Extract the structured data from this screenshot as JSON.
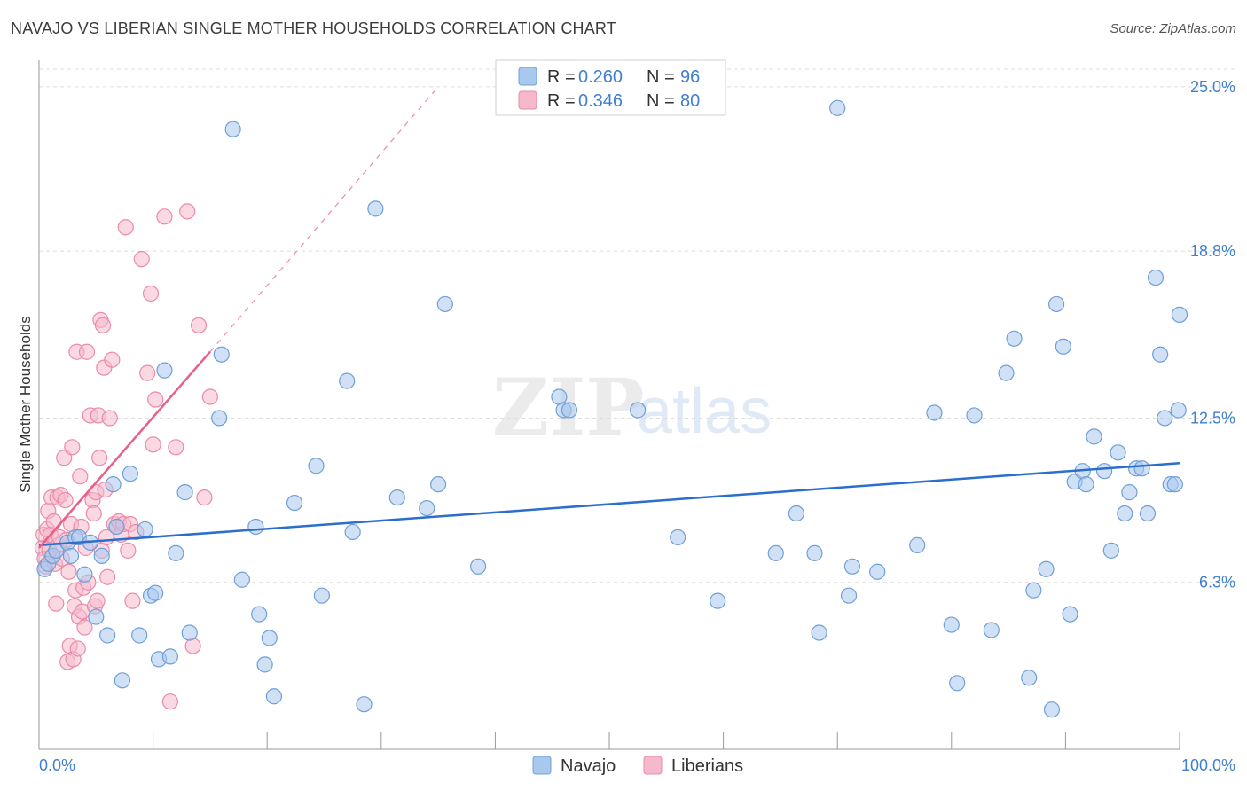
{
  "header": {
    "title": "NAVAJO VS LIBERIAN SINGLE MOTHER HOUSEHOLDS CORRELATION CHART",
    "source": "Source: ZipAtlas.com"
  },
  "watermark": {
    "zip": "ZIP",
    "atlas": "atlas"
  },
  "colors": {
    "navajo_fill": "#a9c8ee",
    "navajo_stroke": "#6f9fd8",
    "navajo_line": "#2a6fcc",
    "liberian_fill": "#f6b9cc",
    "liberian_stroke": "#ec8aa8",
    "liberian_line": "#e8608a",
    "label_blue": "#3f7fd0",
    "grid": "#dddddd"
  },
  "stats": [
    {
      "r_label": "R =",
      "r_value": "0.260",
      "n_label": "N =",
      "n_value": "96"
    },
    {
      "r_label": "R =",
      "r_value": "0.346",
      "n_label": "N =",
      "n_value": "80"
    }
  ],
  "chart_data": {
    "type": "scatter",
    "title": "NAVAJO VS LIBERIAN SINGLE MOTHER HOUSEHOLDS CORRELATION CHART",
    "xlabel": "",
    "ylabel": "Single Mother Households",
    "xlim": [
      0,
      100
    ],
    "ylim": [
      0,
      26
    ],
    "x_tick_labels": [
      "0.0%",
      "100.0%"
    ],
    "y_ticks": [
      6.3,
      12.5,
      18.8,
      25.0
    ],
    "y_tick_labels": [
      "6.3%",
      "12.5%",
      "18.8%",
      "25.0%"
    ],
    "grid": true,
    "legend_position": "bottom-center",
    "series": [
      {
        "name": "Navajo",
        "r": 0.26,
        "n": 96,
        "trend": {
          "x": [
            0,
            100
          ],
          "y": [
            7.7,
            10.8
          ],
          "style": "solid"
        },
        "points": [
          [
            0.5,
            6.8
          ],
          [
            0.8,
            7.0
          ],
          [
            1.2,
            7.3
          ],
          [
            1.5,
            7.5
          ],
          [
            2.5,
            7.8
          ],
          [
            2.8,
            7.3
          ],
          [
            3.2,
            8.0
          ],
          [
            3.5,
            8.0
          ],
          [
            4.0,
            6.6
          ],
          [
            4.5,
            7.8
          ],
          [
            5.0,
            5.0
          ],
          [
            5.5,
            7.3
          ],
          [
            6.0,
            4.3
          ],
          [
            6.5,
            10.0
          ],
          [
            6.8,
            8.4
          ],
          [
            7.3,
            2.6
          ],
          [
            8.0,
            10.4
          ],
          [
            8.8,
            4.3
          ],
          [
            9.3,
            8.3
          ],
          [
            9.8,
            5.8
          ],
          [
            10.2,
            5.9
          ],
          [
            10.5,
            3.4
          ],
          [
            11.0,
            14.3
          ],
          [
            11.5,
            3.5
          ],
          [
            12.0,
            7.4
          ],
          [
            12.8,
            9.7
          ],
          [
            13.2,
            4.4
          ],
          [
            15.8,
            12.5
          ],
          [
            16.0,
            14.9
          ],
          [
            17.0,
            23.4
          ],
          [
            17.8,
            6.4
          ],
          [
            19.0,
            8.4
          ],
          [
            19.3,
            5.1
          ],
          [
            19.8,
            3.2
          ],
          [
            20.2,
            4.2
          ],
          [
            20.6,
            2.0
          ],
          [
            22.4,
            9.3
          ],
          [
            24.3,
            10.7
          ],
          [
            24.8,
            5.8
          ],
          [
            27.0,
            13.9
          ],
          [
            27.5,
            8.2
          ],
          [
            28.5,
            1.7
          ],
          [
            29.5,
            20.4
          ],
          [
            31.4,
            9.5
          ],
          [
            34.0,
            9.1
          ],
          [
            35.0,
            10.0
          ],
          [
            35.6,
            16.8
          ],
          [
            38.5,
            6.9
          ],
          [
            45.6,
            13.3
          ],
          [
            46.0,
            12.8
          ],
          [
            46.5,
            12.8
          ],
          [
            52.5,
            12.8
          ],
          [
            56.0,
            8.0
          ],
          [
            59.5,
            5.6
          ],
          [
            64.6,
            7.4
          ],
          [
            66.4,
            8.9
          ],
          [
            68.0,
            7.4
          ],
          [
            68.4,
            4.4
          ],
          [
            70.0,
            24.2
          ],
          [
            71.0,
            5.8
          ],
          [
            71.3,
            6.9
          ],
          [
            73.5,
            6.7
          ],
          [
            77.0,
            7.7
          ],
          [
            78.5,
            12.7
          ],
          [
            80.0,
            4.7
          ],
          [
            80.5,
            2.5
          ],
          [
            82.0,
            12.6
          ],
          [
            83.5,
            4.5
          ],
          [
            84.8,
            14.2
          ],
          [
            85.5,
            15.5
          ],
          [
            86.8,
            2.7
          ],
          [
            87.2,
            6.0
          ],
          [
            88.3,
            6.8
          ],
          [
            88.8,
            1.5
          ],
          [
            89.2,
            16.8
          ],
          [
            89.8,
            15.2
          ],
          [
            90.4,
            5.1
          ],
          [
            90.8,
            10.1
          ],
          [
            91.5,
            10.5
          ],
          [
            91.8,
            10.0
          ],
          [
            92.5,
            11.8
          ],
          [
            93.4,
            10.5
          ],
          [
            94.0,
            7.5
          ],
          [
            94.6,
            11.2
          ],
          [
            95.2,
            8.9
          ],
          [
            95.6,
            9.7
          ],
          [
            96.2,
            10.6
          ],
          [
            96.7,
            10.6
          ],
          [
            97.2,
            8.9
          ],
          [
            97.9,
            17.8
          ],
          [
            98.3,
            14.9
          ],
          [
            98.7,
            12.5
          ],
          [
            99.2,
            10.0
          ],
          [
            99.6,
            10.0
          ],
          [
            99.9,
            12.8
          ],
          [
            100.0,
            16.4
          ]
        ]
      },
      {
        "name": "Liberians",
        "r": 0.346,
        "n": 80,
        "trend": {
          "x": [
            0,
            15
          ],
          "y": [
            7.6,
            15.0
          ],
          "style": "solid",
          "extension": {
            "x": [
              15,
              35
            ],
            "y": [
              15.0,
              25.0
            ],
            "style": "dashed"
          }
        },
        "points": [
          [
            0.3,
            7.6
          ],
          [
            0.4,
            8.1
          ],
          [
            0.5,
            7.2
          ],
          [
            0.6,
            6.9
          ],
          [
            0.7,
            8.3
          ],
          [
            0.8,
            9.0
          ],
          [
            0.9,
            7.5
          ],
          [
            1.0,
            8.1
          ],
          [
            1.1,
            9.5
          ],
          [
            1.2,
            7.3
          ],
          [
            1.3,
            8.6
          ],
          [
            1.4,
            7.0
          ],
          [
            1.5,
            5.5
          ],
          [
            1.6,
            9.5
          ],
          [
            1.7,
            7.7
          ],
          [
            1.8,
            8.0
          ],
          [
            1.9,
            9.6
          ],
          [
            2.0,
            7.2
          ],
          [
            2.2,
            11.0
          ],
          [
            2.3,
            9.4
          ],
          [
            2.4,
            7.9
          ],
          [
            2.5,
            3.3
          ],
          [
            2.6,
            6.7
          ],
          [
            2.7,
            3.9
          ],
          [
            2.8,
            8.5
          ],
          [
            2.9,
            11.4
          ],
          [
            3.0,
            3.4
          ],
          [
            3.1,
            5.4
          ],
          [
            3.2,
            6.0
          ],
          [
            3.3,
            15.0
          ],
          [
            3.4,
            3.8
          ],
          [
            3.5,
            5.0
          ],
          [
            3.6,
            10.3
          ],
          [
            3.7,
            8.4
          ],
          [
            3.8,
            5.2
          ],
          [
            3.9,
            6.1
          ],
          [
            4.0,
            4.6
          ],
          [
            4.1,
            7.6
          ],
          [
            4.2,
            15.0
          ],
          [
            4.3,
            6.3
          ],
          [
            4.5,
            12.6
          ],
          [
            4.7,
            9.4
          ],
          [
            4.8,
            8.9
          ],
          [
            4.9,
            5.4
          ],
          [
            5.0,
            9.7
          ],
          [
            5.1,
            5.6
          ],
          [
            5.2,
            12.6
          ],
          [
            5.3,
            11.0
          ],
          [
            5.4,
            16.2
          ],
          [
            5.5,
            7.5
          ],
          [
            5.6,
            16.0
          ],
          [
            5.7,
            14.4
          ],
          [
            5.8,
            9.8
          ],
          [
            5.9,
            8.0
          ],
          [
            6.0,
            6.5
          ],
          [
            6.2,
            12.5
          ],
          [
            6.4,
            14.7
          ],
          [
            6.6,
            8.5
          ],
          [
            6.8,
            8.4
          ],
          [
            7.0,
            8.6
          ],
          [
            7.2,
            8.1
          ],
          [
            7.4,
            8.5
          ],
          [
            7.6,
            19.7
          ],
          [
            7.8,
            7.5
          ],
          [
            8.0,
            8.5
          ],
          [
            8.2,
            5.6
          ],
          [
            8.5,
            8.2
          ],
          [
            9.0,
            18.5
          ],
          [
            9.5,
            14.2
          ],
          [
            9.8,
            17.2
          ],
          [
            10.0,
            11.5
          ],
          [
            10.2,
            13.2
          ],
          [
            11.0,
            20.1
          ],
          [
            11.5,
            1.8
          ],
          [
            12.0,
            11.4
          ],
          [
            13.0,
            20.3
          ],
          [
            13.5,
            3.9
          ],
          [
            14.0,
            16.0
          ],
          [
            14.5,
            9.5
          ],
          [
            15.0,
            13.3
          ]
        ]
      }
    ]
  }
}
